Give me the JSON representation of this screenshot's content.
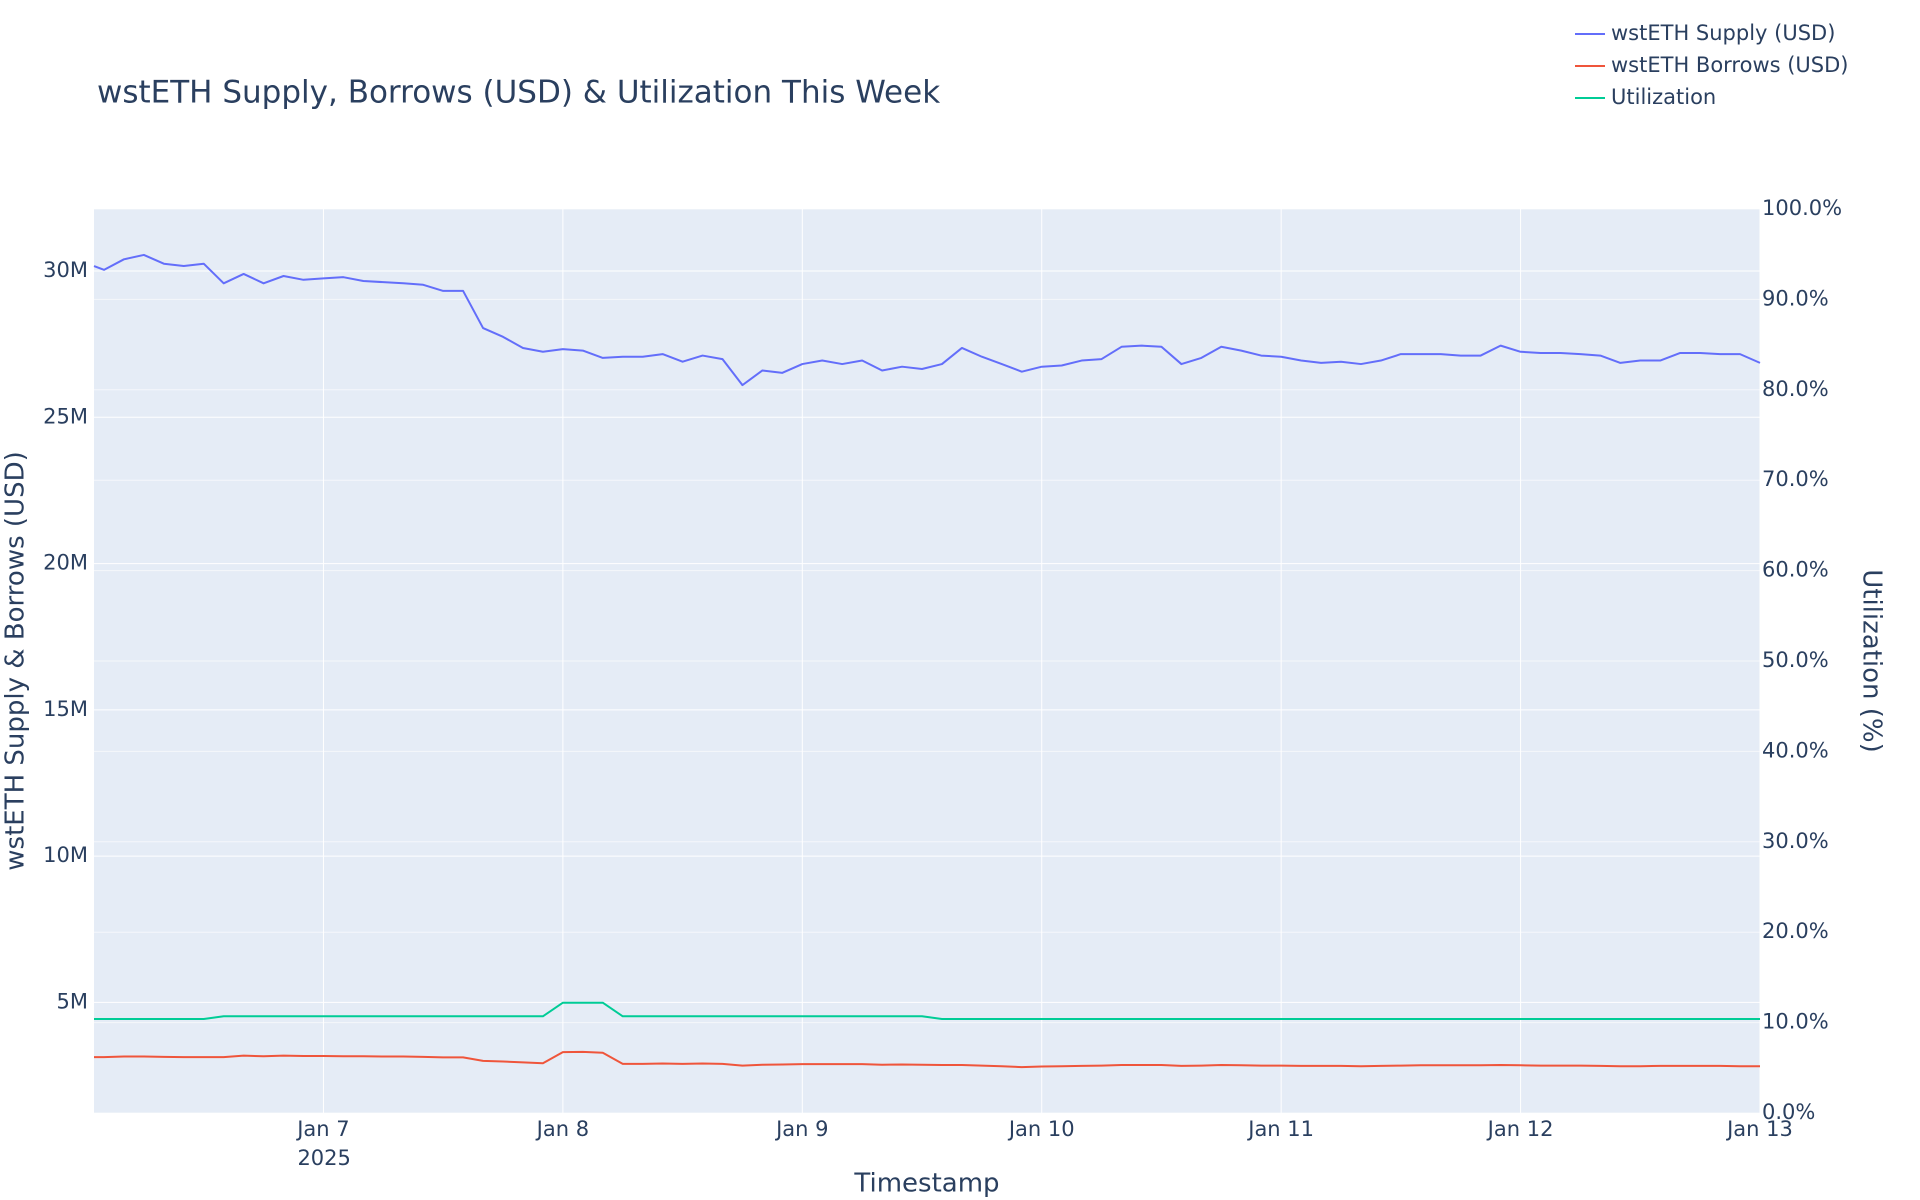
{
  "chart_data": {
    "type": "line",
    "title": "wstETH Supply, Borrows (USD) & Utilization This Week",
    "x_label": "Timestamp",
    "y_label": "wstETH Supply & Borrows (USD)",
    "y2_label": "Utilization (%)",
    "x": [
      "2025-01-06 01:00",
      "2025-01-06 02:00",
      "2025-01-06 04:00",
      "2025-01-06 06:00",
      "2025-01-06 08:00",
      "2025-01-06 10:00",
      "2025-01-06 12:00",
      "2025-01-06 14:00",
      "2025-01-06 16:00",
      "2025-01-06 18:00",
      "2025-01-06 20:00",
      "2025-01-06 22:00",
      "2025-01-07 00:00",
      "2025-01-07 02:00",
      "2025-01-07 04:00",
      "2025-01-07 06:00",
      "2025-01-07 08:00",
      "2025-01-07 10:00",
      "2025-01-07 12:00",
      "2025-01-07 14:00",
      "2025-01-07 16:00",
      "2025-01-07 18:00",
      "2025-01-07 20:00",
      "2025-01-07 22:00",
      "2025-01-08 00:00",
      "2025-01-08 02:00",
      "2025-01-08 04:00",
      "2025-01-08 06:00",
      "2025-01-08 08:00",
      "2025-01-08 10:00",
      "2025-01-08 12:00",
      "2025-01-08 14:00",
      "2025-01-08 16:00",
      "2025-01-08 18:00",
      "2025-01-08 20:00",
      "2025-01-08 22:00",
      "2025-01-09 00:00",
      "2025-01-09 02:00",
      "2025-01-09 04:00",
      "2025-01-09 06:00",
      "2025-01-09 08:00",
      "2025-01-09 10:00",
      "2025-01-09 12:00",
      "2025-01-09 14:00",
      "2025-01-09 16:00",
      "2025-01-09 18:00",
      "2025-01-09 20:00",
      "2025-01-09 22:00",
      "2025-01-10 00:00",
      "2025-01-10 02:00",
      "2025-01-10 04:00",
      "2025-01-10 06:00",
      "2025-01-10 08:00",
      "2025-01-10 10:00",
      "2025-01-10 12:00",
      "2025-01-10 14:00",
      "2025-01-10 16:00",
      "2025-01-10 18:00",
      "2025-01-10 20:00",
      "2025-01-10 22:00",
      "2025-01-11 00:00",
      "2025-01-11 02:00",
      "2025-01-11 04:00",
      "2025-01-11 06:00",
      "2025-01-11 08:00",
      "2025-01-11 10:00",
      "2025-01-11 12:00",
      "2025-01-11 14:00",
      "2025-01-11 16:00",
      "2025-01-11 18:00",
      "2025-01-11 20:00",
      "2025-01-11 22:00",
      "2025-01-12 00:00",
      "2025-01-12 02:00",
      "2025-01-12 04:00",
      "2025-01-12 06:00",
      "2025-01-12 08:00",
      "2025-01-12 10:00",
      "2025-01-12 12:00",
      "2025-01-12 14:00",
      "2025-01-12 16:00",
      "2025-01-12 18:00",
      "2025-01-12 20:00",
      "2025-01-12 22:00",
      "2025-01-13 00:00"
    ],
    "series": [
      {
        "name": "wstETH Supply (USD)",
        "color": "#636efa",
        "axis": "y",
        "values": [
          30170000,
          30040000,
          30400000,
          30550000,
          30250000,
          30170000,
          30250000,
          29580000,
          29900000,
          29580000,
          29830000,
          29700000,
          29750000,
          29790000,
          29660000,
          29620000,
          29580000,
          29530000,
          29320000,
          29320000,
          28050000,
          27750000,
          27370000,
          27240000,
          27330000,
          27280000,
          27030000,
          27070000,
          27070000,
          27160000,
          26900000,
          27110000,
          26990000,
          26100000,
          26600000,
          26520000,
          26820000,
          26940000,
          26820000,
          26940000,
          26600000,
          26730000,
          26650000,
          26820000,
          27370000,
          27070000,
          26820000,
          26560000,
          26730000,
          26770000,
          26940000,
          26990000,
          27410000,
          27450000,
          27410000,
          26820000,
          27030000,
          27410000,
          27280000,
          27110000,
          27070000,
          26940000,
          26860000,
          26900000,
          26820000,
          26940000,
          27160000,
          27160000,
          27160000,
          27110000,
          27110000,
          27450000,
          27240000,
          27200000,
          27200000,
          27160000,
          27110000,
          26860000,
          26940000,
          26940000,
          27200000,
          27200000,
          27160000,
          27160000,
          26860000
        ]
      },
      {
        "name": "wstETH Borrows (USD)",
        "color": "#EF553B",
        "axis": "y",
        "values": [
          3130000,
          3130000,
          3150000,
          3150000,
          3140000,
          3130000,
          3130000,
          3130000,
          3180000,
          3160000,
          3180000,
          3170000,
          3170000,
          3160000,
          3160000,
          3150000,
          3150000,
          3140000,
          3120000,
          3120000,
          3000000,
          2980000,
          2950000,
          2920000,
          3300000,
          3310000,
          3280000,
          2900000,
          2900000,
          2910000,
          2900000,
          2910000,
          2900000,
          2840000,
          2870000,
          2880000,
          2890000,
          2890000,
          2890000,
          2890000,
          2870000,
          2880000,
          2870000,
          2860000,
          2860000,
          2840000,
          2820000,
          2790000,
          2810000,
          2820000,
          2830000,
          2840000,
          2860000,
          2860000,
          2860000,
          2830000,
          2840000,
          2860000,
          2850000,
          2840000,
          2840000,
          2830000,
          2830000,
          2830000,
          2820000,
          2830000,
          2840000,
          2850000,
          2850000,
          2850000,
          2850000,
          2860000,
          2850000,
          2840000,
          2840000,
          2840000,
          2830000,
          2820000,
          2820000,
          2830000,
          2830000,
          2830000,
          2830000,
          2820000,
          2820000
        ]
      },
      {
        "name": "Utilization",
        "color": "#00cc96",
        "axis": "y2",
        "values": [
          10.4,
          10.4,
          10.4,
          10.4,
          10.4,
          10.4,
          10.4,
          10.7,
          10.7,
          10.7,
          10.7,
          10.7,
          10.7,
          10.7,
          10.7,
          10.7,
          10.7,
          10.7,
          10.7,
          10.7,
          10.7,
          10.7,
          10.7,
          10.7,
          12.2,
          12.2,
          12.2,
          10.7,
          10.7,
          10.7,
          10.7,
          10.7,
          10.7,
          10.7,
          10.7,
          10.7,
          10.7,
          10.7,
          10.7,
          10.7,
          10.7,
          10.7,
          10.7,
          10.4,
          10.4,
          10.4,
          10.4,
          10.4,
          10.4,
          10.4,
          10.4,
          10.4,
          10.4,
          10.4,
          10.4,
          10.4,
          10.4,
          10.4,
          10.4,
          10.4,
          10.4,
          10.4,
          10.4,
          10.4,
          10.4,
          10.4,
          10.4,
          10.4,
          10.4,
          10.4,
          10.4,
          10.4,
          10.4,
          10.4,
          10.4,
          10.4,
          10.4,
          10.4,
          10.4,
          10.4,
          10.4,
          10.4,
          10.4,
          10.4,
          10.4
        ]
      }
    ],
    "xlim": [
      "2025-01-06 01:00",
      "2025-01-13 00:00"
    ],
    "xticks": [
      {
        "value": "2025-01-07",
        "label": "Jan 7",
        "sublabel": "2025"
      },
      {
        "value": "2025-01-08",
        "label": "Jan 8"
      },
      {
        "value": "2025-01-09",
        "label": "Jan 9"
      },
      {
        "value": "2025-01-10",
        "label": "Jan 10"
      },
      {
        "value": "2025-01-11",
        "label": "Jan 11"
      },
      {
        "value": "2025-01-12",
        "label": "Jan 12"
      },
      {
        "value": "2025-01-13",
        "label": "Jan 13"
      }
    ],
    "ylim": [
      1220000,
      32120000
    ],
    "yticks": [
      {
        "value": 5000000,
        "label": "5M"
      },
      {
        "value": 10000000,
        "label": "10M"
      },
      {
        "value": 15000000,
        "label": "15M"
      },
      {
        "value": 20000000,
        "label": "20M"
      },
      {
        "value": 25000000,
        "label": "25M"
      },
      {
        "value": 30000000,
        "label": "30M"
      }
    ],
    "y2lim": [
      0,
      100
    ],
    "y2ticks": [
      {
        "value": 0,
        "label": "0.0%"
      },
      {
        "value": 10,
        "label": "10.0%"
      },
      {
        "value": 20,
        "label": "20.0%"
      },
      {
        "value": 30,
        "label": "30.0%"
      },
      {
        "value": 40,
        "label": "40.0%"
      },
      {
        "value": 50,
        "label": "50.0%"
      },
      {
        "value": 60,
        "label": "60.0%"
      },
      {
        "value": 70,
        "label": "70.0%"
      },
      {
        "value": 80,
        "label": "80.0%"
      },
      {
        "value": 90,
        "label": "90.0%"
      },
      {
        "value": 100,
        "label": "100.0%"
      }
    ],
    "grid": true,
    "legend": "top-right"
  }
}
